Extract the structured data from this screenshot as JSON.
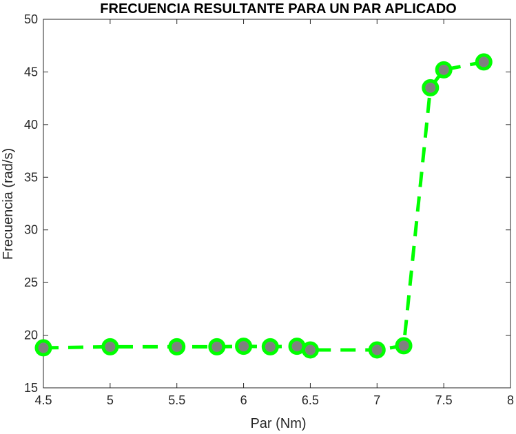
{
  "chart_data": {
    "type": "line",
    "title": "FRECUENCIA RESULTANTE PARA UN PAR APLICADO",
    "xlabel": "Par (Nm)",
    "ylabel": "Frecuencia (rad/s)",
    "xlim": [
      4.5,
      8
    ],
    "ylim": [
      15,
      50
    ],
    "x_ticks": [
      4.5,
      5,
      5.5,
      6,
      6.5,
      7,
      7.5,
      8
    ],
    "y_ticks": [
      15,
      20,
      25,
      30,
      35,
      40,
      45,
      50
    ],
    "x_tick_labels": [
      "4.5",
      "5",
      "5.5",
      "6",
      "6.5",
      "7",
      "7.5",
      "8"
    ],
    "y_tick_labels": [
      "15",
      "20",
      "25",
      "30",
      "35",
      "40",
      "45",
      "50"
    ],
    "grid": false,
    "series": [
      {
        "x": [
          4.5,
          5,
          5.5,
          5.8,
          6,
          6.2,
          6.4,
          6.5,
          7,
          7.2,
          7.4,
          7.5,
          7.8
        ],
        "values": [
          18.8,
          18.9,
          18.9,
          18.9,
          18.95,
          18.9,
          18.95,
          18.6,
          18.6,
          19.0,
          43.5,
          45.2,
          45.95
        ],
        "line_style": "dashed",
        "line_color": "#00ff00",
        "marker": "circle",
        "marker_edge_color": "#00ff00",
        "marker_face_color": "#808080"
      }
    ]
  }
}
